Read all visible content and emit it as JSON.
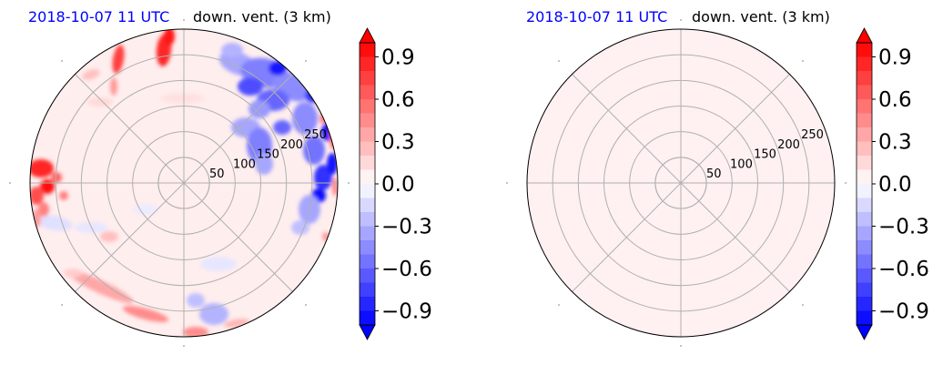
{
  "chart_data": [
    {
      "type": "polar-contour",
      "title_left": "2018-10-07 11 UTC",
      "title_right": "down. vent. (3 km)",
      "title_left_color": "#0000ff",
      "radial_ticks": [
        50,
        100,
        150,
        200,
        250
      ],
      "radial_max": 300,
      "angular_gridlines_deg": [
        0,
        45,
        90,
        135,
        180,
        225,
        270,
        315
      ],
      "background_value": 0.05,
      "features": [
        {
          "kind": "negative",
          "value": -0.6,
          "desc": "blue echo NE quadrant"
        },
        {
          "kind": "negative",
          "value": -0.9,
          "desc": "deep blue along east edge"
        },
        {
          "kind": "positive",
          "value": 0.8,
          "desc": "red streaks north"
        },
        {
          "kind": "positive",
          "value": 0.9,
          "desc": "red cells west"
        },
        {
          "kind": "positive",
          "value": 0.5,
          "desc": "red rim east/west"
        },
        {
          "kind": "positive",
          "value": 0.3,
          "desc": "pink band south-west"
        }
      ],
      "colorbar": {
        "colormap": "bwr",
        "range": [
          -1.0,
          1.0
        ],
        "ticks": [
          "0.9",
          "0.6",
          "0.3",
          "0.0",
          "−0.3",
          "−0.6",
          "−0.9"
        ],
        "extend": "both"
      }
    },
    {
      "type": "polar-contour",
      "title_left": "2018-10-07 11 UTC",
      "title_right": "down. vent. (3 km)",
      "title_left_color": "#0000ff",
      "radial_ticks": [
        50,
        100,
        150,
        200,
        250
      ],
      "radial_max": 300,
      "angular_gridlines_deg": [
        0,
        45,
        90,
        135,
        180,
        225,
        270,
        315
      ],
      "background_value": 0.05,
      "features": [],
      "colorbar": {
        "colormap": "bwr",
        "range": [
          -1.0,
          1.0
        ],
        "ticks": [
          "0.9",
          "0.6",
          "0.3",
          "0.0",
          "−0.3",
          "−0.6",
          "−0.9"
        ],
        "extend": "both"
      }
    }
  ]
}
